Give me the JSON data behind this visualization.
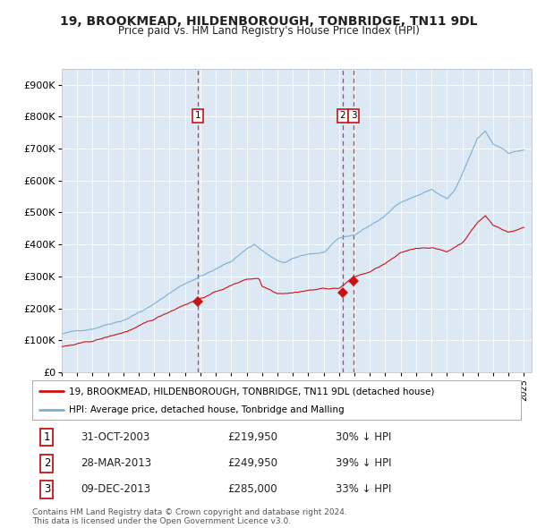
{
  "title": "19, BROOKMEAD, HILDENBOROUGH, TONBRIDGE, TN11 9DL",
  "subtitle": "Price paid vs. HM Land Registry's House Price Index (HPI)",
  "plot_bg_color": "#dce9f5",
  "fig_bg_color": "#ffffff",
  "hpi_color": "#7ab0d4",
  "price_color": "#cc1111",
  "marker_color": "#cc1111",
  "vline_color": "#dd3333",
  "ylim": [
    0,
    950000
  ],
  "yticks": [
    0,
    100000,
    200000,
    300000,
    400000,
    500000,
    600000,
    700000,
    800000,
    900000
  ],
  "ytick_labels": [
    "£0",
    "£100K",
    "£200K",
    "£300K",
    "£400K",
    "£500K",
    "£600K",
    "£700K",
    "£800K",
    "£900K"
  ],
  "sale_labels": [
    "1",
    "2",
    "3"
  ],
  "sale_dates_label": [
    "31-OCT-2003",
    "28-MAR-2013",
    "09-DEC-2013"
  ],
  "sale_prices": [
    219950,
    249950,
    285000
  ],
  "sale_hpi_diff": [
    "30% ↓ HPI",
    "39% ↓ HPI",
    "33% ↓ HPI"
  ],
  "sale_years": [
    2003.83,
    2013.24,
    2013.94
  ],
  "legend_property": "19, BROOKMEAD, HILDENBOROUGH, TONBRIDGE, TN11 9DL (detached house)",
  "legend_hpi": "HPI: Average price, detached house, Tonbridge and Malling",
  "footer": "Contains HM Land Registry data © Crown copyright and database right 2024.\nThis data is licensed under the Open Government Licence v3.0.",
  "table_rows": [
    [
      "1",
      "31-OCT-2003",
      "£219,950",
      "30% ↓ HPI"
    ],
    [
      "2",
      "28-MAR-2013",
      "£249,950",
      "39% ↓ HPI"
    ],
    [
      "3",
      "09-DEC-2013",
      "£285,000",
      "33% ↓ HPI"
    ]
  ]
}
